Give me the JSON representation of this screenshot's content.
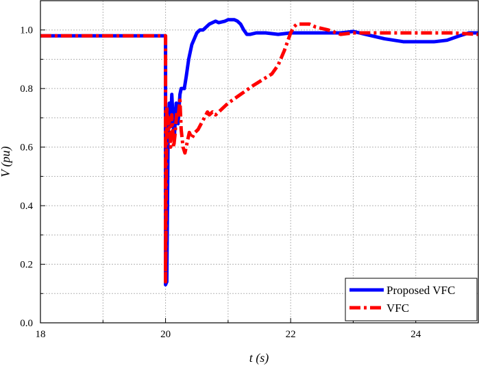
{
  "chart_data": {
    "type": "line",
    "title": "",
    "xlabel": "t (s)",
    "ylabel": "V (pu)",
    "xlim": [
      18,
      25
    ],
    "ylim": [
      0,
      1.1
    ],
    "x_ticks": [
      "18",
      "20",
      "22",
      "24"
    ],
    "y_ticks": [
      "0.0",
      "0.2",
      "0.4",
      "0.6",
      "0.8",
      "1.0"
    ],
    "grid": true,
    "legend_position": "bottom-right",
    "series": [
      {
        "name": "Proposed VFC",
        "color": "#0000ff",
        "style": "solid",
        "x": [
          18.0,
          20.0,
          20.0,
          20.02,
          20.04,
          20.06,
          20.08,
          20.1,
          20.12,
          20.14,
          20.17,
          20.2,
          20.23,
          20.25,
          20.28,
          20.3,
          20.33,
          20.37,
          20.42,
          20.46,
          20.5,
          20.55,
          20.6,
          20.7,
          20.8,
          20.85,
          20.95,
          21.0,
          21.1,
          21.15,
          21.2,
          21.25,
          21.3,
          21.35,
          21.45,
          21.6,
          21.8,
          22.0,
          22.3,
          22.5,
          22.8,
          23.0,
          23.2,
          23.5,
          23.8,
          24.0,
          24.2,
          24.3,
          24.5,
          24.7,
          24.85,
          25.0
        ],
        "y": [
          0.98,
          0.98,
          0.13,
          0.14,
          0.62,
          0.75,
          0.67,
          0.78,
          0.7,
          0.63,
          0.75,
          0.68,
          0.78,
          0.8,
          0.8,
          0.8,
          0.84,
          0.9,
          0.95,
          0.97,
          0.99,
          1.0,
          1.0,
          1.02,
          1.03,
          1.025,
          1.03,
          1.035,
          1.035,
          1.03,
          1.02,
          1.0,
          0.985,
          0.985,
          0.99,
          0.99,
          0.985,
          0.99,
          0.99,
          0.99,
          0.99,
          0.995,
          0.985,
          0.97,
          0.96,
          0.96,
          0.96,
          0.96,
          0.965,
          0.98,
          0.99,
          0.99
        ]
      },
      {
        "name": "VFC",
        "color": "#ff0000",
        "style": "dashdot",
        "x": [
          18.0,
          20.0,
          20.0,
          20.02,
          20.04,
          20.06,
          20.08,
          20.1,
          20.13,
          20.15,
          20.18,
          20.2,
          20.23,
          20.25,
          20.28,
          20.31,
          20.35,
          20.38,
          20.42,
          20.47,
          20.52,
          20.57,
          20.62,
          20.67,
          20.7,
          20.75,
          20.8,
          20.9,
          21.0,
          21.2,
          21.4,
          21.55,
          21.7,
          21.8,
          21.9,
          22.0,
          22.05,
          22.1,
          22.2,
          22.3,
          22.4,
          22.6,
          22.8,
          23.0,
          23.3,
          23.7,
          24.0,
          24.3,
          24.6,
          25.0
        ],
        "y": [
          0.98,
          0.98,
          0.14,
          0.74,
          0.66,
          0.7,
          0.6,
          0.71,
          0.6,
          0.64,
          0.72,
          0.7,
          0.76,
          0.66,
          0.6,
          0.58,
          0.62,
          0.65,
          0.63,
          0.65,
          0.66,
          0.68,
          0.7,
          0.72,
          0.71,
          0.72,
          0.71,
          0.73,
          0.75,
          0.78,
          0.81,
          0.83,
          0.85,
          0.88,
          0.93,
          0.99,
          1.01,
          1.02,
          1.02,
          1.02,
          1.01,
          1.0,
          0.985,
          0.99,
          0.99,
          0.99,
          0.99,
          0.99,
          0.99,
          0.985
        ]
      }
    ]
  }
}
